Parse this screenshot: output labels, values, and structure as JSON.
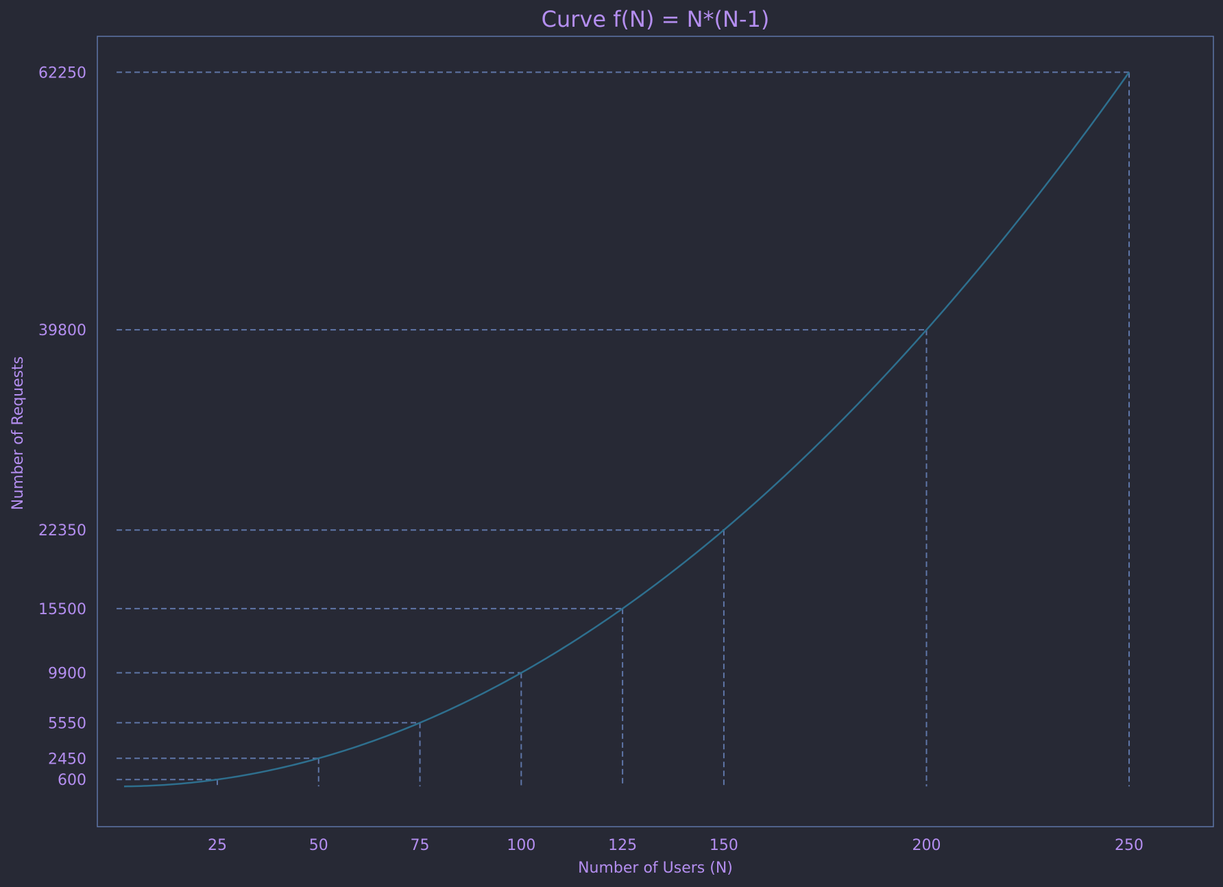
{
  "chart_data": {
    "type": "line",
    "title": "Curve f(N) = N*(N-1)",
    "xlabel": "Number of Users (N)",
    "ylabel": "Number of Requests",
    "xlim": [
      -4.6,
      270.8
    ],
    "ylim": [
      -3510,
      65380
    ],
    "x_ticks": [
      25,
      50,
      75,
      100,
      125,
      150,
      200,
      250
    ],
    "y_ticks": [
      600,
      2450,
      5550,
      9900,
      15500,
      22350,
      39800,
      62250
    ],
    "curve": {
      "formula": "N*(N-1)",
      "x_start": 2,
      "x_end": 250
    },
    "markers": [
      {
        "x": 25,
        "y": 600
      },
      {
        "x": 50,
        "y": 2450
      },
      {
        "x": 75,
        "y": 5550
      },
      {
        "x": 100,
        "y": 9900
      },
      {
        "x": 125,
        "y": 15500
      },
      {
        "x": 150,
        "y": 22350
      },
      {
        "x": 200,
        "y": 39800
      },
      {
        "x": 250,
        "y": 62250
      }
    ],
    "guide_x_start": 2,
    "grid": false,
    "colors": {
      "background": "#272935",
      "curve": "#2e6f8e",
      "guides": "#5f76a8",
      "frame": "#5f76a8",
      "text": "#b48ef0"
    }
  }
}
